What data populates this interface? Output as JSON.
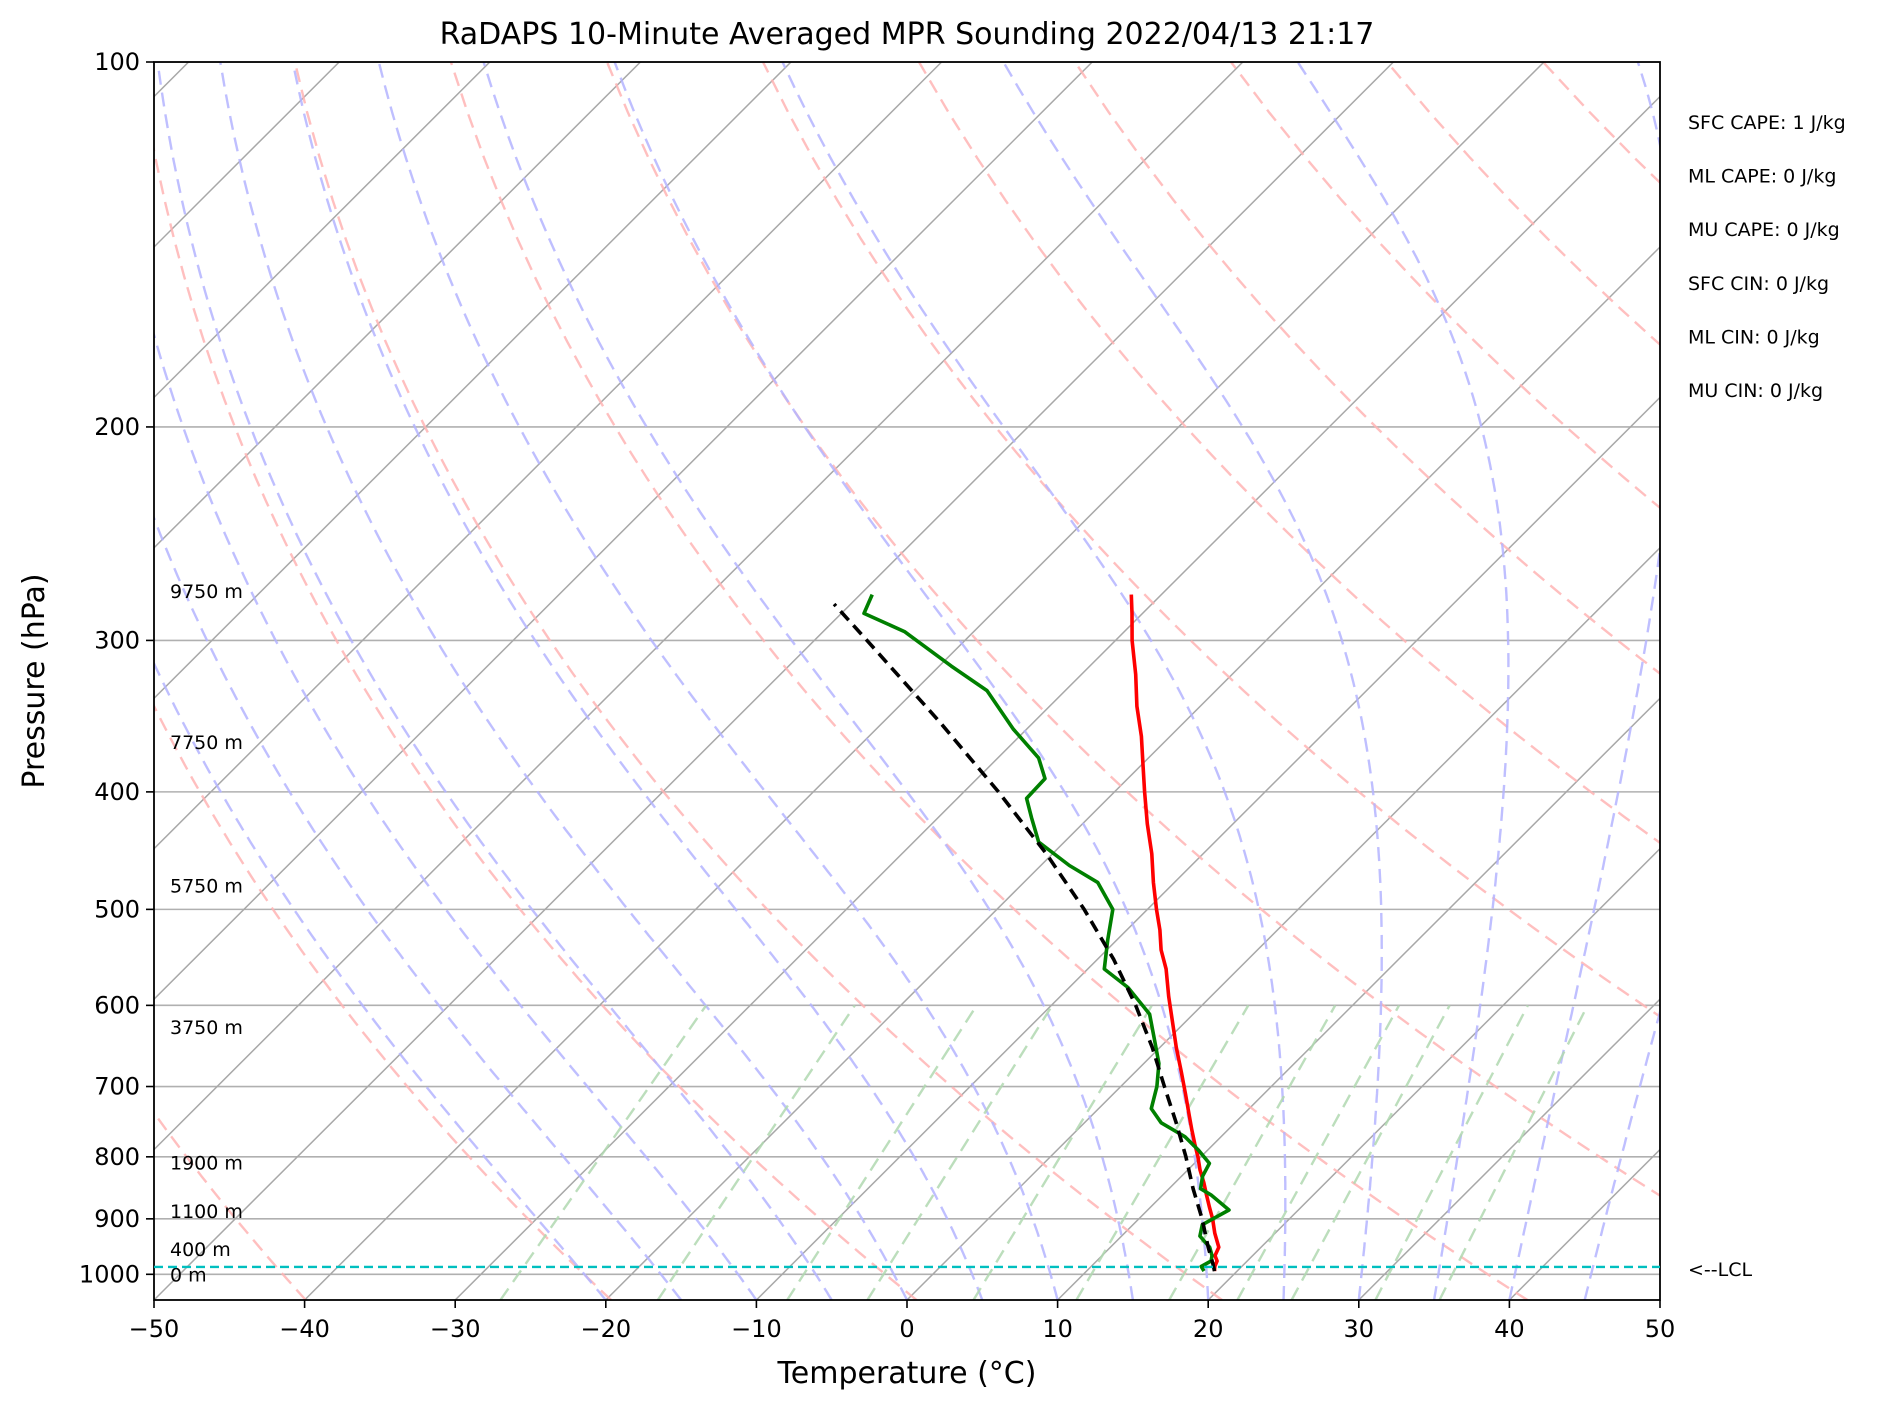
{
  "chart_data": {
    "type": "line",
    "title": "RaDAPS 10-Minute Averaged MPR Sounding 2022/04/13 21:17",
    "xlabel": "Temperature (°C)",
    "ylabel": "Pressure (hPa)",
    "xlim": [
      -50,
      50
    ],
    "ylim": [
      1050,
      100
    ],
    "y_scale": "log",
    "skew_factor": 35,
    "grid": true,
    "x_ticks": [
      -50,
      -40,
      -30,
      -20,
      -10,
      0,
      10,
      20,
      30,
      40,
      50
    ],
    "x_tick_labels": [
      "−50",
      "−40",
      "−30",
      "−20",
      "−10",
      "0",
      "10",
      "20",
      "30",
      "40",
      "50"
    ],
    "y_ticks": [
      1000,
      900,
      800,
      700,
      600,
      500,
      400,
      300,
      200,
      100
    ],
    "y_tick_labels": [
      "1000",
      "900",
      "800",
      "700",
      "600",
      "500",
      "400",
      "300",
      "200",
      "100"
    ],
    "series": [
      {
        "type": "temperature",
        "color": "#ff0000",
        "dash": "solid",
        "points": [
          {
            "p": 994,
            "t": 18.5
          },
          {
            "p": 985,
            "t": 18.2
          },
          {
            "p": 975,
            "t": 18.0
          },
          {
            "p": 965,
            "t": 17.5
          },
          {
            "p": 950,
            "t": 17.2
          },
          {
            "p": 925,
            "t": 16.0
          },
          {
            "p": 900,
            "t": 14.9
          },
          {
            "p": 880,
            "t": 13.9
          },
          {
            "p": 860,
            "t": 12.9
          },
          {
            "p": 840,
            "t": 11.9
          },
          {
            "p": 820,
            "t": 10.8
          },
          {
            "p": 800,
            "t": 9.8
          },
          {
            "p": 780,
            "t": 8.7
          },
          {
            "p": 760,
            "t": 7.6
          },
          {
            "p": 740,
            "t": 6.5
          },
          {
            "p": 710,
            "t": 4.8
          },
          {
            "p": 680,
            "t": 3.0
          },
          {
            "p": 650,
            "t": 1.1
          },
          {
            "p": 620,
            "t": -0.8
          },
          {
            "p": 590,
            "t": -2.8
          },
          {
            "p": 560,
            "t": -4.8
          },
          {
            "p": 540,
            "t": -6.4
          },
          {
            "p": 520,
            "t": -7.8
          },
          {
            "p": 500,
            "t": -9.4
          },
          {
            "p": 475,
            "t": -11.4
          },
          {
            "p": 450,
            "t": -13.4
          },
          {
            "p": 425,
            "t": -15.7
          },
          {
            "p": 400,
            "t": -18.0
          },
          {
            "p": 380,
            "t": -19.9
          },
          {
            "p": 360,
            "t": -21.9
          },
          {
            "p": 340,
            "t": -24.2
          },
          {
            "p": 320,
            "t": -26.4
          },
          {
            "p": 300,
            "t": -28.9
          },
          {
            "p": 285,
            "t": -30.7
          },
          {
            "p": 275,
            "t": -32.0
          }
        ]
      },
      {
        "type": "dewpoint",
        "color": "#008000",
        "dash": "solid",
        "points": [
          {
            "p": 994,
            "t": 17.8
          },
          {
            "p": 985,
            "t": 17.3
          },
          {
            "p": 975,
            "t": 17.6
          },
          {
            "p": 965,
            "t": 17.3
          },
          {
            "p": 950,
            "t": 16.6
          },
          {
            "p": 930,
            "t": 15.2
          },
          {
            "p": 910,
            "t": 14.6
          },
          {
            "p": 885,
            "t": 15.4
          },
          {
            "p": 860,
            "t": 13.2
          },
          {
            "p": 850,
            "t": 12.1
          },
          {
            "p": 830,
            "t": 11.4
          },
          {
            "p": 810,
            "t": 11.0
          },
          {
            "p": 790,
            "t": 9.4
          },
          {
            "p": 770,
            "t": 7.6
          },
          {
            "p": 750,
            "t": 5.1
          },
          {
            "p": 730,
            "t": 3.5
          },
          {
            "p": 700,
            "t": 2.4
          },
          {
            "p": 670,
            "t": 1.0
          },
          {
            "p": 640,
            "t": -0.9
          },
          {
            "p": 610,
            "t": -2.9
          },
          {
            "p": 580,
            "t": -6.1
          },
          {
            "p": 560,
            "t": -8.9
          },
          {
            "p": 530,
            "t": -10.6
          },
          {
            "p": 500,
            "t": -12.3
          },
          {
            "p": 475,
            "t": -15.1
          },
          {
            "p": 460,
            "t": -18.1
          },
          {
            "p": 440,
            "t": -21.7
          },
          {
            "p": 420,
            "t": -23.8
          },
          {
            "p": 405,
            "t": -25.4
          },
          {
            "p": 390,
            "t": -25.5
          },
          {
            "p": 375,
            "t": -27.3
          },
          {
            "p": 355,
            "t": -30.9
          },
          {
            "p": 330,
            "t": -35.2
          },
          {
            "p": 315,
            "t": -39.2
          },
          {
            "p": 295,
            "t": -44.6
          },
          {
            "p": 285,
            "t": -48.5
          },
          {
            "p": 275,
            "t": -49.2
          }
        ]
      },
      {
        "type": "parcel",
        "color": "#000000",
        "dash": "dashed",
        "points": [
          {
            "p": 994,
            "t": 18.5
          },
          {
            "p": 980,
            "t": 17.9
          },
          {
            "p": 950,
            "t": 16.5
          },
          {
            "p": 900,
            "t": 14.2
          },
          {
            "p": 850,
            "t": 11.6
          },
          {
            "p": 800,
            "t": 9.0
          },
          {
            "p": 750,
            "t": 6.1
          },
          {
            "p": 700,
            "t": 2.9
          },
          {
            "p": 650,
            "t": -0.5
          },
          {
            "p": 600,
            "t": -4.4
          },
          {
            "p": 550,
            "t": -8.9
          },
          {
            "p": 500,
            "t": -14.2
          },
          {
            "p": 450,
            "t": -20.4
          },
          {
            "p": 400,
            "t": -27.7
          },
          {
            "p": 350,
            "t": -36.3
          },
          {
            "p": 300,
            "t": -46.5
          },
          {
            "p": 280,
            "t": -51.1
          }
        ]
      }
    ],
    "height_labels": [
      {
        "p": 1000,
        "label": "0 m"
      },
      {
        "p": 953,
        "label": "400 m"
      },
      {
        "p": 887,
        "label": "1100 m"
      },
      {
        "p": 809,
        "label": "1900 m"
      },
      {
        "p": 625,
        "label": "3750 m"
      },
      {
        "p": 478,
        "label": "5750 m"
      },
      {
        "p": 364,
        "label": "7750 m"
      },
      {
        "p": 273,
        "label": "9750 m"
      }
    ],
    "lcl": {
      "p": 986,
      "color": "#00bfbf",
      "label": "<--LCL"
    },
    "indices": [
      "SFC CAPE: 1 J/kg",
      "ML CAPE: 0 J/kg",
      "MU CAPE: 0 J/kg",
      "SFC CIN: 0 J/kg",
      "ML CIN: 0 J/kg",
      "MU CIN: 0 J/kg"
    ],
    "dry_adiabats_theta_k": [
      190,
      210,
      230,
      250,
      270,
      290,
      310,
      330,
      350,
      370,
      390,
      410,
      430,
      450,
      470
    ],
    "moist_adiabats_start_c": [
      -20,
      -15,
      -10,
      -5,
      0,
      5,
      10,
      15,
      20,
      25,
      30,
      35,
      40,
      45
    ],
    "mixing_ratios_gkg": [
      0.4,
      1,
      2,
      3,
      5,
      8,
      12,
      16,
      20,
      28,
      36
    ]
  }
}
